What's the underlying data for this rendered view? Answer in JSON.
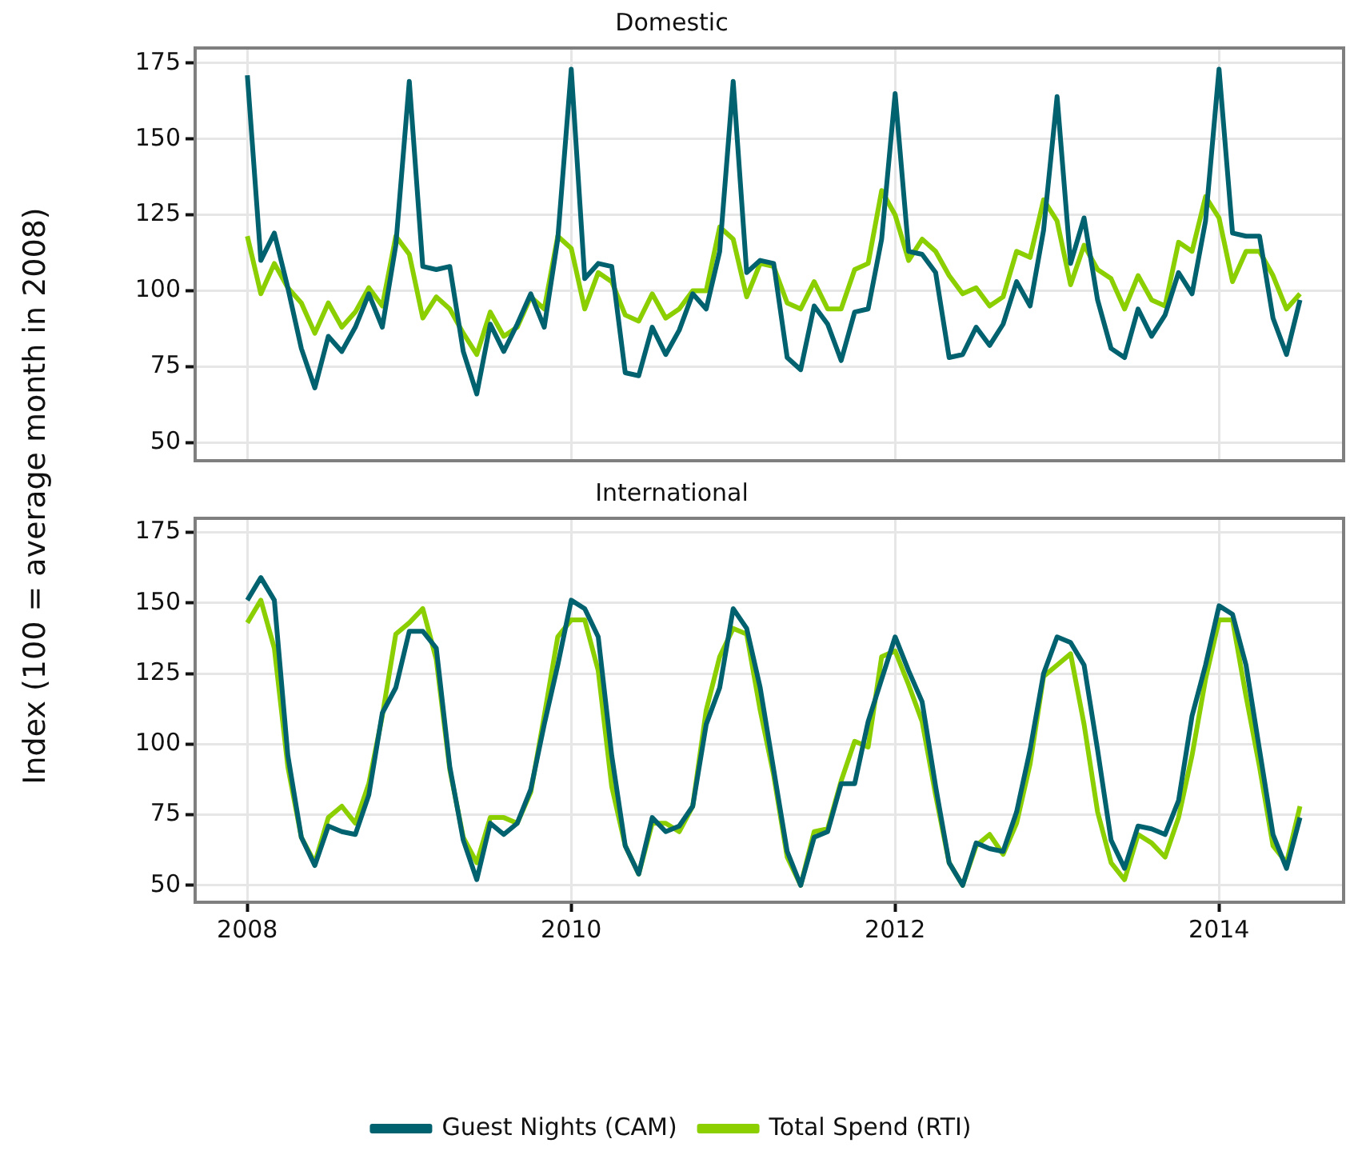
{
  "chart_data": [
    {
      "type": "line",
      "title": "Domestic",
      "ylabel": "Index (100 = average month in 2008)",
      "tick_labels": "y",
      "grid": true,
      "legend": false,
      "xlim": [
        "2007-09-05",
        "2014-10-08"
      ],
      "xticks": [
        "2008",
        "2010",
        "2012",
        "2014"
      ],
      "ylim": [
        44,
        180
      ],
      "yticks": [
        50,
        75,
        100,
        125,
        150,
        175
      ],
      "x": [
        "2008-01",
        "2008-02",
        "2008-03",
        "2008-04",
        "2008-05",
        "2008-06",
        "2008-07",
        "2008-08",
        "2008-09",
        "2008-10",
        "2008-11",
        "2008-12",
        "2009-01",
        "2009-02",
        "2009-03",
        "2009-04",
        "2009-05",
        "2009-06",
        "2009-07",
        "2009-08",
        "2009-09",
        "2009-10",
        "2009-11",
        "2009-12",
        "2010-01",
        "2010-02",
        "2010-03",
        "2010-04",
        "2010-05",
        "2010-06",
        "2010-07",
        "2010-08",
        "2010-09",
        "2010-10",
        "2010-11",
        "2010-12",
        "2011-01",
        "2011-02",
        "2011-03",
        "2011-04",
        "2011-05",
        "2011-06",
        "2011-07",
        "2011-08",
        "2011-09",
        "2011-10",
        "2011-11",
        "2011-12",
        "2012-01",
        "2012-02",
        "2012-03",
        "2012-04",
        "2012-05",
        "2012-06",
        "2012-07",
        "2012-08",
        "2012-09",
        "2012-10",
        "2012-11",
        "2012-12",
        "2013-01",
        "2013-02",
        "2013-03",
        "2013-04",
        "2013-05",
        "2013-06",
        "2013-07",
        "2013-08",
        "2013-09",
        "2013-10",
        "2013-11",
        "2013-12",
        "2014-01",
        "2014-02",
        "2014-03",
        "2014-04",
        "2014-05",
        "2014-06",
        "2014-07"
      ],
      "series": [
        {
          "color": "#00616f",
          "values": [
            171,
            110,
            119,
            101,
            81,
            68,
            85,
            80,
            88,
            99,
            88,
            115,
            169,
            108,
            107,
            108,
            80,
            66,
            89,
            80,
            89,
            99,
            88,
            117,
            173,
            104,
            109,
            108,
            73,
            72,
            88,
            79,
            87,
            99,
            94,
            113,
            169,
            106,
            110,
            109,
            78,
            74,
            95,
            89,
            77,
            93,
            94,
            117,
            165,
            113,
            112,
            106,
            78,
            79,
            88,
            82,
            89,
            103,
            95,
            120,
            164,
            109,
            124,
            97,
            81,
            78,
            94,
            85,
            92,
            106,
            99,
            123,
            173,
            119,
            118,
            118,
            91,
            79,
            97
          ]
        },
        {
          "color": "#8ccf00",
          "values": [
            118,
            99,
            109,
            101,
            96,
            86,
            96,
            88,
            93,
            101,
            95,
            118,
            112,
            91,
            98,
            94,
            86,
            79,
            93,
            85,
            88,
            98,
            94,
            118,
            114,
            94,
            106,
            103,
            92,
            90,
            99,
            91,
            94,
            100,
            100,
            121,
            117,
            98,
            109,
            108,
            96,
            94,
            103,
            94,
            94,
            107,
            109,
            133,
            125,
            110,
            117,
            113,
            105,
            99,
            101,
            95,
            98,
            113,
            111,
            130,
            123,
            102,
            115,
            107,
            104,
            94,
            105,
            97,
            95,
            116,
            113,
            131,
            124,
            103,
            113,
            113,
            105,
            94,
            99
          ]
        }
      ]
    },
    {
      "type": "line",
      "title": "International",
      "grid": true,
      "legend": "bottom",
      "xlim": [
        "2007-09-05",
        "2014-10-08"
      ],
      "xticks": [
        "2008",
        "2010",
        "2012",
        "2014"
      ],
      "ylim": [
        44,
        180
      ],
      "yticks": [
        50,
        75,
        100,
        125,
        150,
        175
      ],
      "x": [
        "2008-01",
        "2008-02",
        "2008-03",
        "2008-04",
        "2008-05",
        "2008-06",
        "2008-07",
        "2008-08",
        "2008-09",
        "2008-10",
        "2008-11",
        "2008-12",
        "2009-01",
        "2009-02",
        "2009-03",
        "2009-04",
        "2009-05",
        "2009-06",
        "2009-07",
        "2009-08",
        "2009-09",
        "2009-10",
        "2009-11",
        "2009-12",
        "2010-01",
        "2010-02",
        "2010-03",
        "2010-04",
        "2010-05",
        "2010-06",
        "2010-07",
        "2010-08",
        "2010-09",
        "2010-10",
        "2010-11",
        "2010-12",
        "2011-01",
        "2011-02",
        "2011-03",
        "2011-04",
        "2011-05",
        "2011-06",
        "2011-07",
        "2011-08",
        "2011-09",
        "2011-10",
        "2011-11",
        "2011-12",
        "2012-01",
        "2012-02",
        "2012-03",
        "2012-04",
        "2012-05",
        "2012-06",
        "2012-07",
        "2012-08",
        "2012-09",
        "2012-10",
        "2012-11",
        "2012-12",
        "2013-01",
        "2013-02",
        "2013-03",
        "2013-04",
        "2013-05",
        "2013-06",
        "2013-07",
        "2013-08",
        "2013-09",
        "2013-10",
        "2013-11",
        "2013-12",
        "2014-01",
        "2014-02",
        "2014-03",
        "2014-04",
        "2014-05",
        "2014-06",
        "2014-07"
      ],
      "series": [
        {
          "name": "Guest Nights (CAM)",
          "color": "#00616f",
          "values": [
            151,
            159,
            151,
            96,
            67,
            57,
            71,
            69,
            68,
            82,
            111,
            120,
            140,
            140,
            134,
            92,
            66,
            52,
            72,
            68,
            72,
            84,
            107,
            128,
            151,
            148,
            138,
            96,
            64,
            54,
            74,
            69,
            71,
            78,
            107,
            120,
            148,
            141,
            120,
            91,
            62,
            50,
            67,
            69,
            86,
            86,
            108,
            123,
            138,
            126,
            115,
            85,
            58,
            50,
            65,
            63,
            62,
            76,
            98,
            125,
            138,
            136,
            128,
            98,
            66,
            56,
            71,
            70,
            68,
            80,
            110,
            128,
            149,
            146,
            128,
            98,
            68,
            56,
            74
          ]
        },
        {
          "name": "Total Spend (RTI)",
          "color": "#8ccf00",
          "values": [
            143,
            151,
            134,
            92,
            67,
            58,
            74,
            78,
            72,
            86,
            110,
            139,
            143,
            148,
            130,
            91,
            67,
            58,
            74,
            74,
            72,
            83,
            110,
            138,
            144,
            144,
            126,
            85,
            64,
            54,
            72,
            72,
            69,
            78,
            112,
            131,
            141,
            139,
            112,
            89,
            60,
            50,
            69,
            70,
            87,
            101,
            99,
            131,
            133,
            121,
            108,
            82,
            58,
            50,
            64,
            68,
            61,
            72,
            93,
            124,
            128,
            132,
            107,
            76,
            58,
            52,
            68,
            65,
            60,
            74,
            96,
            123,
            144,
            144,
            117,
            92,
            64,
            58,
            78
          ]
        }
      ]
    }
  ]
}
